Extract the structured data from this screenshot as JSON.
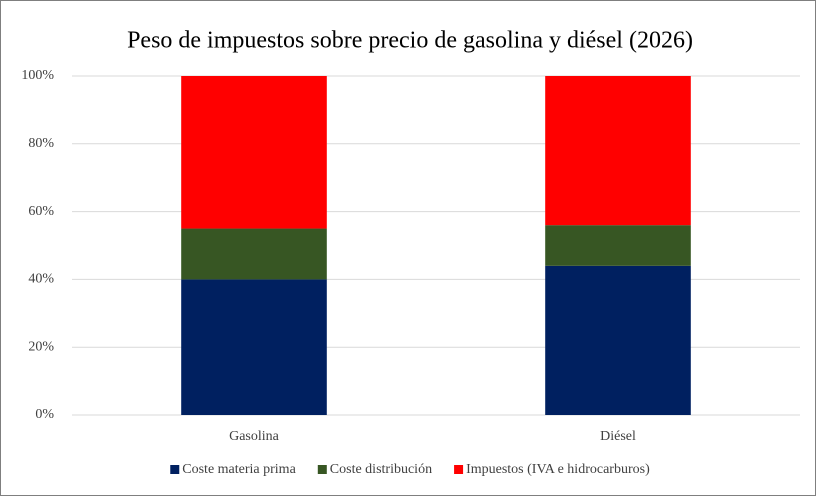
{
  "chart_data": {
    "type": "stacked_bar",
    "title": "Peso de impuestos sobre precio de gasolina y diésel (2026)",
    "categories": [
      "Gasolina",
      "Diésel"
    ],
    "series": [
      {
        "name": "Coste materia prima",
        "color": "#002060",
        "values": [
          40,
          44
        ]
      },
      {
        "name": "Coste distribución",
        "color": "#375623",
        "values": [
          15,
          12
        ]
      },
      {
        "name": "Impuestos (IVA e hidrocarburos)",
        "color": "#ff0000",
        "values": [
          45,
          44
        ]
      }
    ],
    "ylim": [
      0,
      100
    ],
    "yticks": [
      {
        "value": 0,
        "label": "0%"
      },
      {
        "value": 20,
        "label": "20%"
      },
      {
        "value": 40,
        "label": "40%"
      },
      {
        "value": 60,
        "label": "60%"
      },
      {
        "value": 80,
        "label": "80%"
      },
      {
        "value": 100,
        "label": "100%"
      }
    ],
    "grid": true,
    "legend": "bottom"
  }
}
